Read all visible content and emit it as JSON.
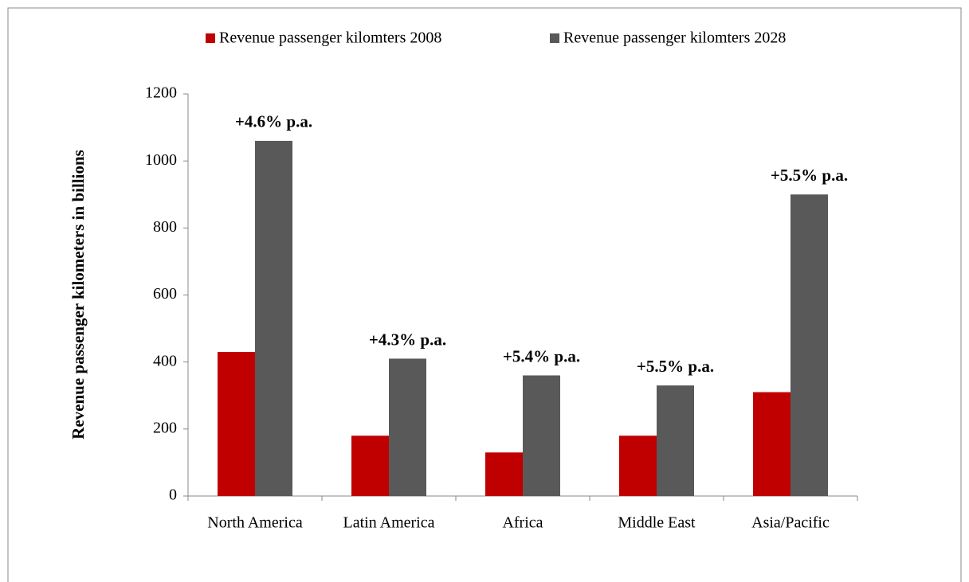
{
  "chart_data": {
    "type": "bar",
    "y_label": "Revenue passenger kilometers in billions",
    "categories": [
      "North America",
      "Latin America",
      "Africa",
      "Middle East",
      "Asia/Pacific"
    ],
    "series": [
      {
        "name": "Revenue passenger kilomters 2008",
        "color": "#c00000",
        "values": [
          430,
          180,
          130,
          180,
          310
        ]
      },
      {
        "name": "Revenue passenger kilomters 2028",
        "color": "#595959",
        "values": [
          1060,
          410,
          360,
          330,
          900
        ]
      }
    ],
    "annotations": [
      "+4.6% p.a.",
      "+4.3% p.a.",
      "+5.4% p.a.",
      "+5.5% p.a.",
      "+5.5% p.a."
    ],
    "ylim": [
      0,
      1200
    ],
    "yticks": [
      0,
      200,
      400,
      600,
      800,
      1000,
      1200
    ],
    "legend": "top",
    "grid": false
  }
}
